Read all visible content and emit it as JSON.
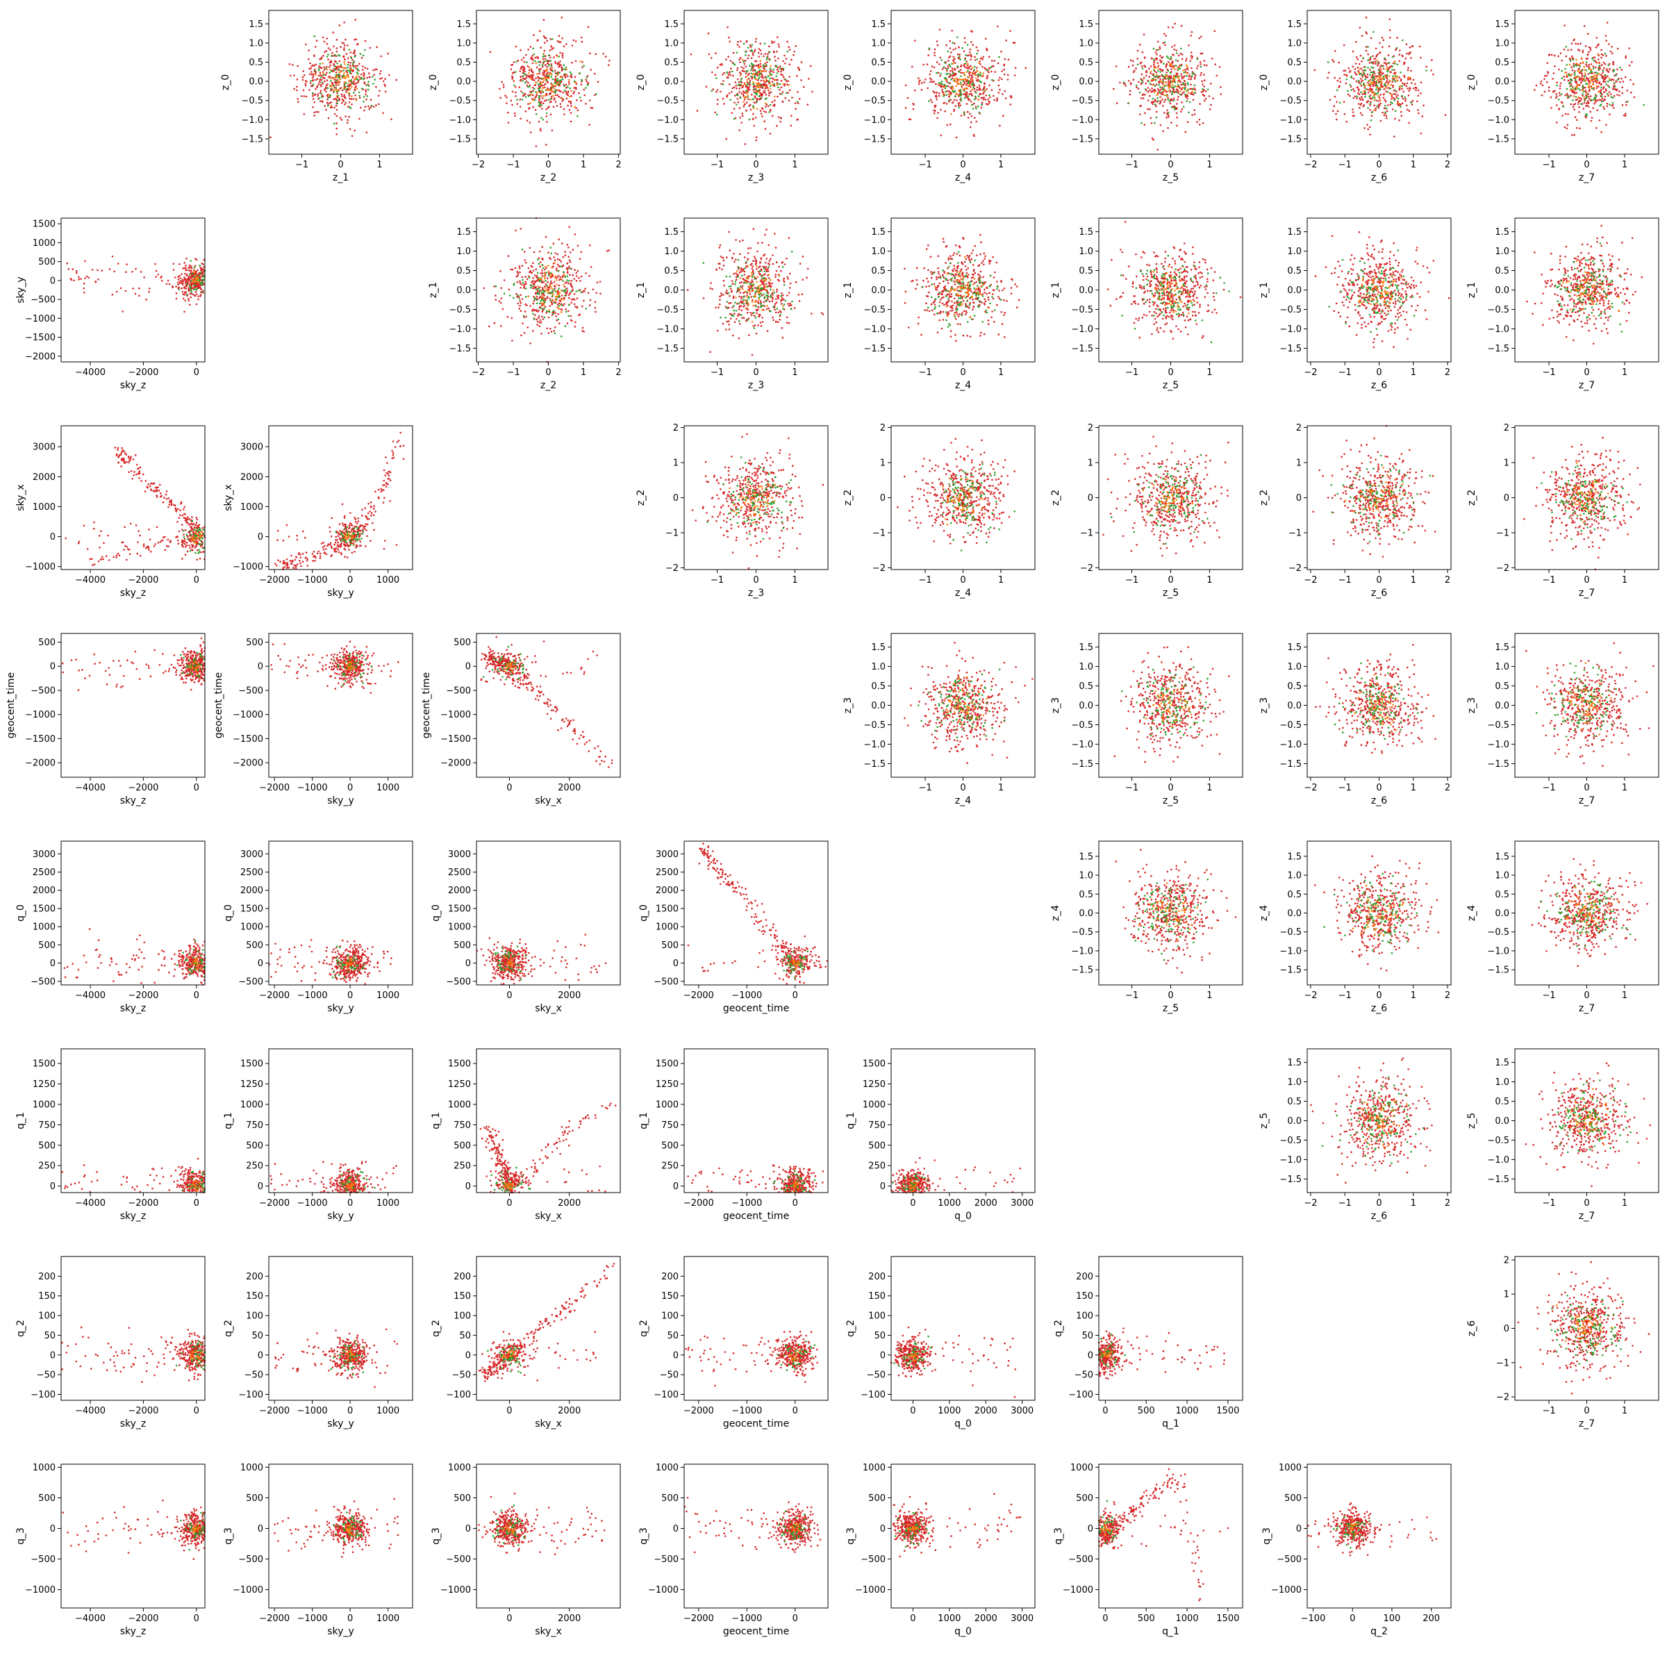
{
  "chart_data": {
    "type": "scatter",
    "layout": "corner-matrix",
    "grid": false,
    "marker": "dot",
    "series_colors": [
      "#d62728",
      "#2ca02c",
      "#ff7f0e"
    ],
    "lower_triangle": {
      "row_variables": [
        "sky_y",
        "sky_x",
        "geocent_time",
        "q_0",
        "q_1",
        "q_2",
        "q_3"
      ],
      "column_variables": [
        "sky_z",
        "sky_y",
        "sky_x",
        "geocent_time",
        "q_0",
        "q_1",
        "q_2"
      ]
    },
    "upper_triangle": {
      "row_variables": [
        "z_0",
        "z_1",
        "z_2",
        "z_3",
        "z_4",
        "z_5",
        "z_6"
      ],
      "column_variables": [
        "z_1",
        "z_2",
        "z_3",
        "z_4",
        "z_5",
        "z_6",
        "z_7"
      ]
    },
    "variables": {
      "sky_z": {
        "label": "sky_z",
        "range": [
          -5100,
          320
        ],
        "ticks": [
          -4000,
          -2000,
          0
        ],
        "tick_labels": [
          "−4000",
          "−2000",
          "0"
        ]
      },
      "sky_y": {
        "label": "sky_y",
        "range": [
          -2150,
          1650
        ],
        "ticks": [
          -2000,
          -1500,
          -1000,
          -500,
          0,
          500,
          1000,
          1500
        ],
        "tick_labels": [
          "−2000",
          "−1500",
          "−1000",
          "−500",
          "0",
          "500",
          "1000",
          "1500"
        ],
        "x_ticks": [
          -2000,
          -1000,
          0,
          1000
        ],
        "x_tick_labels": [
          "−2000",
          "−1000",
          "0",
          "1000"
        ]
      },
      "sky_x": {
        "label": "sky_x",
        "range": [
          -1100,
          3700
        ],
        "ticks": [
          -1000,
          0,
          1000,
          2000,
          3000
        ],
        "tick_labels": [
          "−1000",
          "0",
          "1000",
          "2000",
          "3000"
        ],
        "x_ticks": [
          0,
          2000
        ],
        "x_tick_labels": [
          "0",
          "2000"
        ]
      },
      "geocent_time": {
        "label": "geocent_time",
        "range": [
          -2300,
          680
        ],
        "ticks": [
          -2000,
          -1500,
          -1000,
          -500,
          0,
          500
        ],
        "tick_labels": [
          "−2000",
          "−1500",
          "−1000",
          "−500",
          "0",
          "500"
        ],
        "x_ticks": [
          -2000,
          -1000,
          0
        ],
        "x_tick_labels": [
          "−2000",
          "−1000",
          "0"
        ]
      },
      "q_0": {
        "label": "q_0",
        "range": [
          -600,
          3350
        ],
        "ticks": [
          -500,
          0,
          500,
          1000,
          1500,
          2000,
          2500,
          3000
        ],
        "tick_labels": [
          "−500",
          "0",
          "500",
          "1000",
          "1500",
          "2000",
          "2500",
          "3000"
        ],
        "x_ticks": [
          0,
          1000,
          2000,
          3000
        ],
        "x_tick_labels": [
          "0",
          "1000",
          "2000",
          "3000"
        ]
      },
      "q_1": {
        "label": "q_1",
        "range": [
          -80,
          1680
        ],
        "ticks": [
          0,
          250,
          500,
          750,
          1000,
          1250,
          1500
        ],
        "tick_labels": [
          "0",
          "250",
          "500",
          "750",
          "1000",
          "1250",
          "1500"
        ],
        "x_ticks": [
          0,
          500,
          1000,
          1500
        ],
        "x_tick_labels": [
          "0",
          "500",
          "1000",
          "1500"
        ]
      },
      "q_2": {
        "label": "q_2",
        "range": [
          -115,
          250
        ],
        "ticks": [
          -100,
          -50,
          0,
          50,
          100,
          150,
          200
        ],
        "tick_labels": [
          "−100",
          "−50",
          "0",
          "50",
          "100",
          "150",
          "200"
        ],
        "x_ticks": [
          -100,
          0,
          100,
          200
        ],
        "x_tick_labels": [
          "−100",
          "0",
          "100",
          "200"
        ]
      },
      "q_3": {
        "label": "q_3",
        "range": [
          -1300,
          1050
        ],
        "ticks": [
          -1000,
          -500,
          0,
          500,
          1000
        ],
        "tick_labels": [
          "−1000",
          "−500",
          "0",
          "500",
          "1000"
        ]
      },
      "z_0": {
        "label": "z_0",
        "range": [
          -1.9,
          1.85
        ],
        "ticks": [
          -1.5,
          -1.0,
          -0.5,
          0.0,
          0.5,
          1.0,
          1.5
        ],
        "tick_labels": [
          "−1.5",
          "−1.0",
          "−0.5",
          "0.0",
          "0.5",
          "1.0",
          "1.5"
        ]
      },
      "z_1": {
        "label": "z_1",
        "range": [
          -1.85,
          1.85
        ],
        "ticks": [
          -1.5,
          -1.0,
          -0.5,
          0.0,
          0.5,
          1.0,
          1.5
        ],
        "tick_labels": [
          "−1.5",
          "−1.0",
          "−0.5",
          "0.0",
          "0.5",
          "1.0",
          "1.5"
        ],
        "x_ticks": [
          -1,
          0,
          1
        ],
        "x_tick_labels": [
          "−1",
          "0",
          "1"
        ]
      },
      "z_2": {
        "label": "z_2",
        "range": [
          -2.05,
          2.05
        ],
        "ticks": [
          -2,
          -1,
          0,
          1,
          2
        ],
        "tick_labels": [
          "−2",
          "−1",
          "0",
          "1",
          "2"
        ]
      },
      "z_3": {
        "label": "z_3",
        "range": [
          -1.85,
          1.85
        ],
        "ticks": [
          -1.5,
          -1.0,
          -0.5,
          0.0,
          0.5,
          1.0,
          1.5
        ],
        "tick_labels": [
          "−1.5",
          "−1.0",
          "−0.5",
          "0.0",
          "0.5",
          "1.0",
          "1.5"
        ],
        "x_ticks": [
          -1,
          0,
          1
        ],
        "x_tick_labels": [
          "−1",
          "0",
          "1"
        ]
      },
      "z_4": {
        "label": "z_4",
        "range": [
          -1.9,
          1.9
        ],
        "ticks": [
          -1.5,
          -1.0,
          -0.5,
          0.0,
          0.5,
          1.0,
          1.5
        ],
        "tick_labels": [
          "−1.5",
          "−1.0",
          "−0.5",
          "0.0",
          "0.5",
          "1.0",
          "1.5"
        ],
        "x_ticks": [
          -1,
          0,
          1
        ],
        "x_tick_labels": [
          "−1",
          "0",
          "1"
        ]
      },
      "z_5": {
        "label": "z_5",
        "range": [
          -1.85,
          1.85
        ],
        "ticks": [
          -1.5,
          -1.0,
          -0.5,
          0.0,
          0.5,
          1.0,
          1.5
        ],
        "tick_labels": [
          "−1.5",
          "−1.0",
          "−0.5",
          "0.0",
          "0.5",
          "1.0",
          "1.5"
        ],
        "x_ticks": [
          -1,
          0,
          1
        ],
        "x_tick_labels": [
          "−1",
          "0",
          "1"
        ]
      },
      "z_6": {
        "label": "z_6",
        "range": [
          -2.1,
          2.1
        ],
        "ticks": [
          -2,
          -1,
          0,
          1,
          2
        ],
        "tick_labels": [
          "−2",
          "−1",
          "0",
          "1",
          "2"
        ]
      },
      "z_7": {
        "label": "z_7",
        "range": [
          -1.9,
          1.9
        ],
        "ticks": [
          -1,
          0,
          1
        ],
        "tick_labels": [
          "−1",
          "0",
          "1"
        ]
      }
    },
    "trend_shapes": {
      "sky_z|sky_x": [
        [
          -2900,
          2800
        ],
        [
          -1500,
          1500
        ],
        [
          -300,
          700
        ],
        [
          0,
          0
        ],
        [
          -1500,
          -300
        ],
        [
          -4000,
          -800
        ]
      ],
      "sky_y|sky_x": [
        [
          -1800,
          -1000
        ],
        [
          -500,
          -400
        ],
        [
          0,
          0
        ],
        [
          500,
          700
        ],
        [
          1000,
          2000
        ],
        [
          1400,
          3500
        ]
      ],
      "sky_x|geocent_time": [
        [
          -700,
          200
        ],
        [
          0,
          0
        ],
        [
          1000,
          -600
        ],
        [
          2000,
          -1200
        ],
        [
          3400,
          -2100
        ]
      ],
      "geocent_time|q_0": [
        [
          -1900,
          3100
        ],
        [
          -1200,
          2000
        ],
        [
          -500,
          800
        ],
        [
          -100,
          100
        ],
        [
          0,
          0
        ],
        [
          600,
          50
        ]
      ],
      "sky_x|q_1": [
        [
          -700,
          700
        ],
        [
          -300,
          300
        ],
        [
          0,
          50
        ],
        [
          500,
          100
        ],
        [
          2000,
          700
        ],
        [
          3500,
          1000
        ]
      ],
      "sky_x|q_2": [
        [
          -800,
          -50
        ],
        [
          0,
          0
        ],
        [
          1000,
          60
        ],
        [
          2000,
          130
        ],
        [
          3500,
          230
        ]
      ],
      "q_1|q_3": [
        [
          0,
          -200
        ],
        [
          200,
          100
        ],
        [
          500,
          500
        ],
        [
          900,
          900
        ],
        [
          1200,
          -1100
        ]
      ]
    }
  }
}
